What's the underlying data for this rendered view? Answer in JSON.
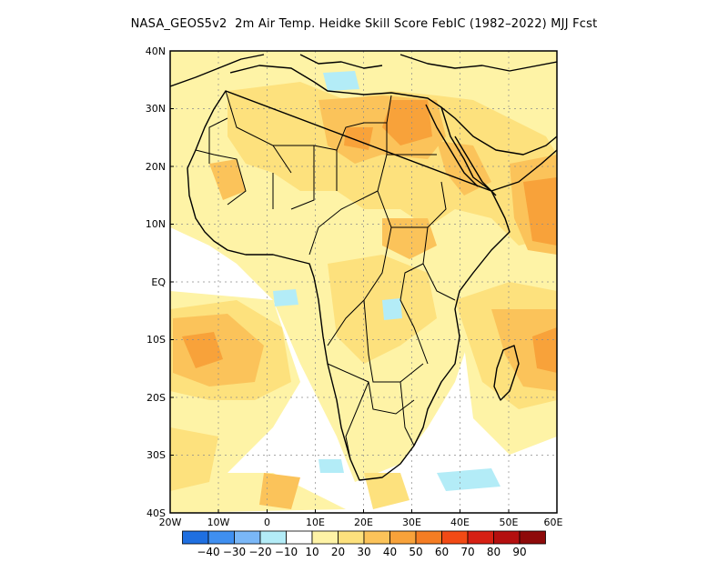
{
  "title": "NASA_GEOS5v2  2m Air Temp. Heidke Skill Score FebIC (1982–2022) MJJ Fcst",
  "lat_labels": [
    "40N",
    "30N",
    "20N",
    "10N",
    "EQ",
    "10S",
    "20S",
    "30S",
    "40S"
  ],
  "lon_labels": [
    "20W",
    "10W",
    "0",
    "10E",
    "20E",
    "30E",
    "40E",
    "50E",
    "60E"
  ],
  "colorbar": {
    "colors": [
      "#1f6fe0",
      "#3f8ff0",
      "#7ab7f7",
      "#b3ecf7",
      "#ffffff",
      "#fef3a6",
      "#fde17d",
      "#fbc35a",
      "#f8a23a",
      "#f57d23",
      "#f24a15",
      "#d62013",
      "#b40f0f",
      "#8e0a0a"
    ],
    "labels": [
      "−40",
      "−30",
      "−20",
      "−10",
      "10",
      "20",
      "30",
      "40",
      "50",
      "60",
      "70",
      "80",
      "90"
    ]
  },
  "legend_values": [
    -40,
    -30,
    -20,
    -10,
    10,
    20,
    30,
    40,
    50,
    60,
    70,
    80,
    90
  ]
}
